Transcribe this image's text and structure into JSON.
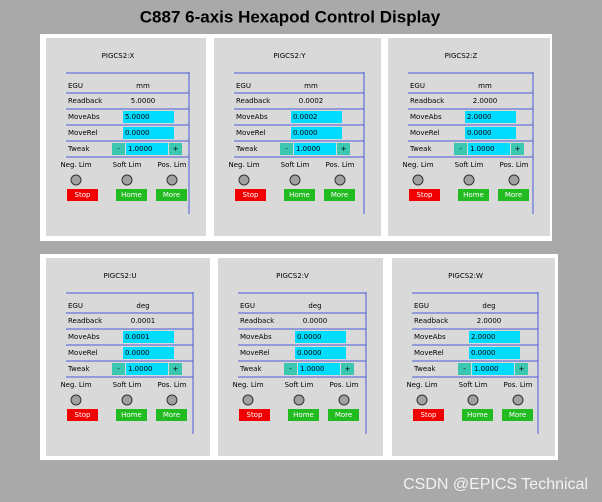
{
  "header": {
    "title": "C887  6-axis Hexapod Control Display"
  },
  "labels": {
    "egu": "EGU",
    "readback": "Readback",
    "move_abs": "MoveAbs",
    "move_rel": "MoveRel",
    "tweak": "Tweak",
    "neg_lim": "Neg. Lim",
    "soft_lim": "Soft Lim",
    "pos_lim": "Pos. Lim",
    "minus": "-",
    "plus": "+",
    "stop": "Stop",
    "home": "Home",
    "more": "More"
  },
  "panels": [
    {
      "name": "PIGCS2:X",
      "egu": "mm",
      "readback": "5.0000",
      "move_abs": "5.0000",
      "move_rel": "0.0000",
      "tweak": "1.0000"
    },
    {
      "name": "PIGCS2:Y",
      "egu": "mm",
      "readback": "0.0002",
      "move_abs": "0.0002",
      "move_rel": "0.0000",
      "tweak": "1.0000"
    },
    {
      "name": "PIGCS2:Z",
      "egu": "mm",
      "readback": "2.0000",
      "move_abs": "2.0000",
      "move_rel": "0.0000",
      "tweak": "1.0000"
    },
    {
      "name": "PIGCS2:U",
      "egu": "deg",
      "readback": "0.0001",
      "move_abs": "0.0001",
      "move_rel": "0.0000",
      "tweak": "1.0000"
    },
    {
      "name": "PIGCS2:V",
      "egu": "deg",
      "readback": "0.0000",
      "move_abs": "0.0000",
      "move_rel": "0.0000",
      "tweak": "1.0000"
    },
    {
      "name": "PIGCS2:W",
      "egu": "deg",
      "readback": "2.0000",
      "move_abs": "2.0000",
      "move_rel": "0.0000",
      "tweak": "1.0000"
    }
  ],
  "watermark": "CSDN @EPICS Technical"
}
